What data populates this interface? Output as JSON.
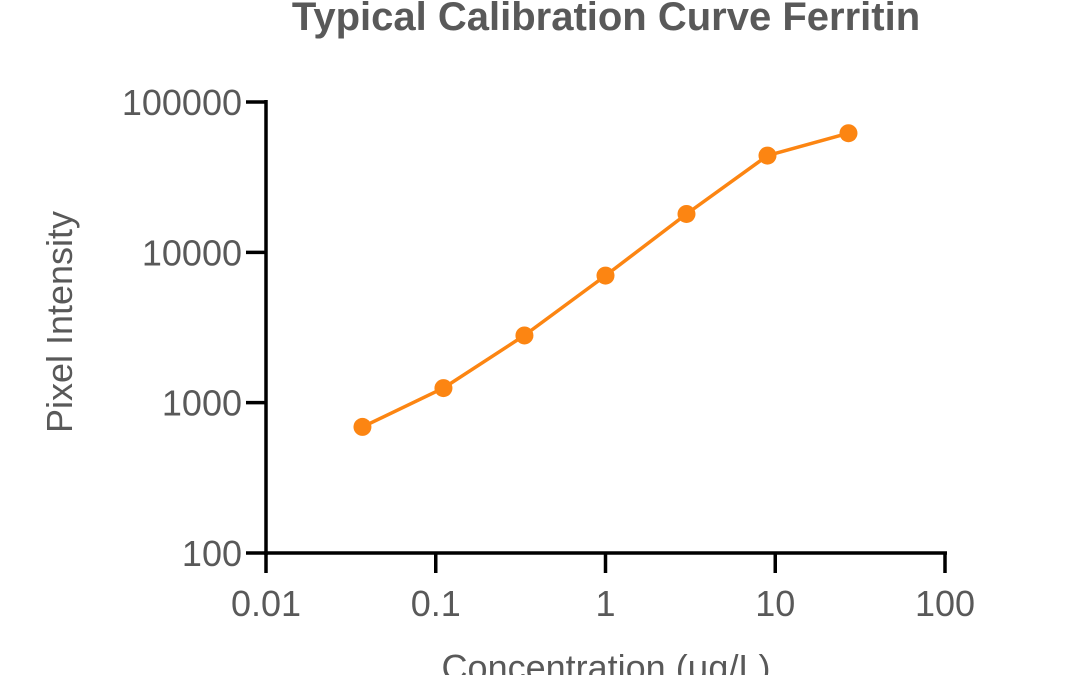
{
  "chart_data": {
    "type": "line",
    "title": "Typical Calibration Curve Ferritin",
    "xlabel": "Concentration (μg/L)",
    "ylabel": "Pixel Intensity",
    "x_scale": "log",
    "y_scale": "log",
    "xlim": [
      0.01,
      100
    ],
    "ylim": [
      100,
      100000
    ],
    "x_ticks": [
      "0.01",
      "0.1",
      "1",
      "10",
      "100"
    ],
    "y_ticks": [
      "100",
      "1000",
      "10000",
      "100000"
    ],
    "grid": false,
    "series": [
      {
        "color": "#fc8512",
        "marker": "circle",
        "points": [
          {
            "x": 0.037,
            "y": 690
          },
          {
            "x": 0.111,
            "y": 1250
          },
          {
            "x": 0.333,
            "y": 2800
          },
          {
            "x": 1.0,
            "y": 7000
          },
          {
            "x": 3.0,
            "y": 18000
          },
          {
            "x": 9.0,
            "y": 44000
          },
          {
            "x": 27.0,
            "y": 62000
          }
        ]
      }
    ]
  }
}
